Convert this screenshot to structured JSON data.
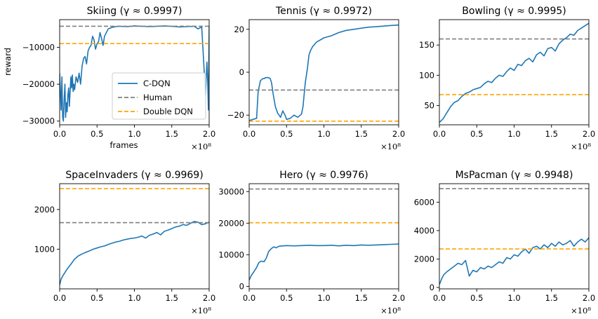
{
  "colors": {
    "cdqn": "#1f77b4",
    "human": "#808080",
    "ddqn": "#ffa500"
  },
  "legend": {
    "cdqn": "C-DQN",
    "human": "Human",
    "ddqn": "Double DQN"
  },
  "chart_data": [
    {
      "type": "line",
      "game": "Skiing",
      "gamma": "0.9997",
      "title": "Skiing (γ ≈ 0.9997)",
      "xlabel": "frames",
      "ylabel": "reward",
      "xlim": [
        0,
        2.0
      ],
      "ylim": [
        -31000,
        -2500
      ],
      "xticks": [
        "0.0",
        "0.5",
        "1.0",
        "1.5",
        "2.0"
      ],
      "x_multiplier": "×10⁸",
      "yticks": [
        -30000,
        -20000,
        -10000
      ],
      "ytick_labels": [
        "−30000",
        "−20000",
        "−10000"
      ],
      "human": -4300,
      "double_dqn": -9000,
      "series": [
        {
          "name": "C-DQN",
          "x": [
            0.0,
            0.02,
            0.03,
            0.04,
            0.05,
            0.06,
            0.07,
            0.08,
            0.09,
            0.1,
            0.11,
            0.12,
            0.13,
            0.14,
            0.15,
            0.16,
            0.17,
            0.18,
            0.19,
            0.2,
            0.22,
            0.24,
            0.26,
            0.28,
            0.3,
            0.32,
            0.34,
            0.36,
            0.38,
            0.4,
            0.42,
            0.44,
            0.46,
            0.48,
            0.5,
            0.52,
            0.54,
            0.56,
            0.58,
            0.6,
            0.65,
            0.7,
            0.75,
            0.8,
            0.9,
            1.0,
            1.1,
            1.2,
            1.3,
            1.4,
            1.5,
            1.6,
            1.7,
            1.8,
            1.85,
            1.9,
            1.93,
            1.95,
            1.97,
            1.98,
            1.99,
            2.0
          ],
          "y": [
            -17000,
            -27000,
            -18000,
            -29000,
            -30000,
            -24000,
            -20000,
            -29000,
            -25000,
            -27500,
            -23000,
            -21000,
            -26000,
            -22000,
            -18000,
            -21000,
            -17500,
            -22000,
            -20000,
            -21500,
            -18000,
            -19500,
            -17000,
            -20000,
            -15000,
            -13000,
            -12500,
            -14500,
            -11000,
            -10000,
            -9500,
            -7000,
            -8000,
            -10500,
            -9000,
            -8500,
            -6000,
            -7500,
            -9500,
            -7000,
            -5000,
            -4600,
            -4400,
            -4300,
            -4400,
            -4200,
            -4300,
            -4400,
            -4300,
            -4200,
            -4300,
            -4500,
            -4400,
            -4300,
            -5000,
            -4500,
            -15000,
            -23000,
            -14000,
            -19000,
            -27000,
            -4500
          ]
        }
      ]
    },
    {
      "type": "line",
      "game": "Tennis",
      "gamma": "0.9972",
      "title": "Tennis (γ ≈ 0.9972)",
      "xlabel": "",
      "ylabel": "",
      "xlim": [
        0,
        2.0
      ],
      "ylim": [
        -24.5,
        24.5
      ],
      "xticks": [
        "0.0",
        "0.5",
        "1.0",
        "1.5",
        "2.0"
      ],
      "x_multiplier": "×10⁸",
      "yticks": [
        -20,
        0,
        20
      ],
      "ytick_labels": [
        "−20",
        "0",
        "20"
      ],
      "human": -8.3,
      "double_dqn": -22.8,
      "series": [
        {
          "name": "C-DQN",
          "x": [
            0.0,
            0.05,
            0.1,
            0.12,
            0.15,
            0.18,
            0.2,
            0.22,
            0.25,
            0.28,
            0.3,
            0.32,
            0.35,
            0.38,
            0.4,
            0.42,
            0.45,
            0.48,
            0.5,
            0.55,
            0.6,
            0.65,
            0.7,
            0.72,
            0.75,
            0.78,
            0.8,
            0.82,
            0.85,
            0.9,
            1.0,
            1.1,
            1.2,
            1.3,
            1.4,
            1.5,
            1.6,
            1.7,
            1.8,
            1.9,
            2.0
          ],
          "y": [
            -22.5,
            -22,
            -21.5,
            -9,
            -4,
            -3,
            -3,
            -2.5,
            -2.5,
            -2.8,
            -5,
            -10,
            -16,
            -19,
            -20,
            -21,
            -18,
            -20,
            -22,
            -21.5,
            -20,
            -21,
            -19.5,
            -16,
            -5,
            2,
            8,
            10,
            12,
            14,
            16,
            17,
            18.5,
            19.5,
            20,
            20.5,
            21,
            21.2,
            21.5,
            21.8,
            22
          ]
        }
      ]
    },
    {
      "type": "line",
      "game": "Bowling",
      "gamma": "0.9995",
      "title": "Bowling (γ ≈ 0.9995)",
      "xlabel": "",
      "ylabel": "",
      "xlim": [
        0,
        2.0
      ],
      "ylim": [
        18,
        192
      ],
      "xticks": [
        "0.0",
        "0.5",
        "1.0",
        "1.5",
        "2.0"
      ],
      "x_multiplier": "×10⁸",
      "yticks": [
        50,
        100,
        150
      ],
      "ytick_labels": [
        "50",
        "100",
        "150"
      ],
      "human": 160,
      "double_dqn": 68,
      "series": [
        {
          "name": "C-DQN",
          "x": [
            0.0,
            0.05,
            0.1,
            0.15,
            0.2,
            0.25,
            0.3,
            0.35,
            0.4,
            0.45,
            0.5,
            0.55,
            0.6,
            0.65,
            0.7,
            0.75,
            0.8,
            0.85,
            0.9,
            0.95,
            1.0,
            1.05,
            1.1,
            1.15,
            1.2,
            1.25,
            1.3,
            1.35,
            1.4,
            1.45,
            1.5,
            1.55,
            1.6,
            1.65,
            1.7,
            1.75,
            1.8,
            1.85,
            1.9,
            1.95,
            2.0
          ],
          "y": [
            22,
            28,
            38,
            48,
            55,
            58,
            65,
            70,
            72,
            76,
            78,
            80,
            86,
            90,
            88,
            95,
            100,
            98,
            106,
            112,
            108,
            118,
            116,
            124,
            128,
            122,
            134,
            138,
            132,
            144,
            146,
            140,
            152,
            158,
            162,
            168,
            166,
            174,
            178,
            182,
            186
          ]
        }
      ]
    },
    {
      "type": "line",
      "game": "SpaceInvaders",
      "gamma": "0.9969",
      "title": "SpaceInvaders (γ ≈ 0.9969)",
      "xlabel": "",
      "ylabel": "",
      "xlim": [
        0,
        2.0
      ],
      "ylim": [
        0,
        2650
      ],
      "xticks": [
        "0.0",
        "0.5",
        "1.0",
        "1.5",
        "2.0"
      ],
      "x_multiplier": "×10⁸",
      "yticks": [
        1000,
        2000
      ],
      "ytick_labels": [
        "1000",
        "2000"
      ],
      "human": 1668,
      "double_dqn": 2525,
      "series": [
        {
          "name": "C-DQN",
          "x": [
            0.0,
            0.02,
            0.05,
            0.1,
            0.15,
            0.2,
            0.25,
            0.3,
            0.35,
            0.4,
            0.45,
            0.5,
            0.55,
            0.6,
            0.65,
            0.7,
            0.75,
            0.8,
            0.85,
            0.9,
            0.95,
            1.0,
            1.05,
            1.1,
            1.15,
            1.2,
            1.25,
            1.3,
            1.35,
            1.4,
            1.45,
            1.5,
            1.55,
            1.6,
            1.65,
            1.7,
            1.75,
            1.8,
            1.85,
            1.9,
            1.95,
            2.0
          ],
          "y": [
            100,
            250,
            350,
            500,
            620,
            750,
            830,
            880,
            920,
            960,
            1000,
            1030,
            1060,
            1080,
            1120,
            1150,
            1180,
            1200,
            1230,
            1250,
            1270,
            1280,
            1300,
            1330,
            1280,
            1350,
            1380,
            1420,
            1360,
            1450,
            1480,
            1520,
            1560,
            1580,
            1620,
            1600,
            1650,
            1700,
            1680,
            1620,
            1640,
            1680
          ]
        }
      ]
    },
    {
      "type": "line",
      "game": "Hero",
      "gamma": "0.9976",
      "title": "Hero (γ ≈ 0.9976)",
      "xlabel": "",
      "ylabel": "",
      "xlim": [
        0,
        2.0
      ],
      "ylim": [
        -800,
        32500
      ],
      "xticks": [
        "0.0",
        "0.5",
        "1.0",
        "1.5",
        "2.0"
      ],
      "x_multiplier": "×10⁸",
      "yticks": [
        0,
        10000,
        20000,
        30000
      ],
      "ytick_labels": [
        "0",
        "10000",
        "20000",
        "30000"
      ],
      "human": 30826,
      "double_dqn": 20130,
      "series": [
        {
          "name": "C-DQN",
          "x": [
            0.0,
            0.03,
            0.06,
            0.1,
            0.13,
            0.16,
            0.2,
            0.23,
            0.26,
            0.3,
            0.33,
            0.36,
            0.4,
            0.45,
            0.5,
            0.6,
            0.7,
            0.8,
            0.9,
            1.0,
            1.1,
            1.2,
            1.3,
            1.4,
            1.5,
            1.6,
            1.7,
            1.8,
            1.9,
            2.0
          ],
          "y": [
            2000,
            3500,
            4500,
            6000,
            7500,
            8000,
            7800,
            9000,
            11000,
            12000,
            12500,
            12200,
            12700,
            12800,
            12900,
            12800,
            12900,
            13000,
            12900,
            12900,
            13000,
            12800,
            13000,
            12900,
            13100,
            13000,
            13100,
            13200,
            13300,
            13400
          ]
        }
      ]
    },
    {
      "type": "line",
      "game": "MsPacman",
      "gamma": "0.9948",
      "title": "MsPacman (γ ≈ 0.9948)",
      "xlabel": "",
      "ylabel": "",
      "xlim": [
        0,
        2.0
      ],
      "ylim": [
        -100,
        7300
      ],
      "xticks": [
        "0.0",
        "0.5",
        "1.0",
        "1.5",
        "2.0"
      ],
      "x_multiplier": "×10⁸",
      "yticks": [
        0,
        2000,
        4000,
        6000
      ],
      "ytick_labels": [
        "0",
        "2000",
        "4000",
        "6000"
      ],
      "human": 6952,
      "double_dqn": 2711,
      "series": [
        {
          "name": "C-DQN",
          "x": [
            0.0,
            0.03,
            0.06,
            0.1,
            0.15,
            0.2,
            0.25,
            0.3,
            0.35,
            0.4,
            0.45,
            0.5,
            0.55,
            0.6,
            0.65,
            0.7,
            0.75,
            0.8,
            0.85,
            0.9,
            0.95,
            1.0,
            1.05,
            1.1,
            1.15,
            1.2,
            1.25,
            1.3,
            1.35,
            1.4,
            1.45,
            1.5,
            1.55,
            1.6,
            1.65,
            1.7,
            1.75,
            1.8,
            1.85,
            1.9,
            1.95,
            2.0
          ],
          "y": [
            200,
            600,
            900,
            1100,
            1300,
            1500,
            1700,
            1600,
            1900,
            800,
            1200,
            1100,
            1400,
            1300,
            1500,
            1400,
            1600,
            1800,
            1700,
            2100,
            2000,
            2300,
            2200,
            2500,
            2700,
            2400,
            2800,
            2900,
            2700,
            3000,
            2800,
            3100,
            2900,
            3200,
            3000,
            3100,
            3300,
            2900,
            3200,
            3400,
            3200,
            3500
          ]
        }
      ]
    }
  ]
}
